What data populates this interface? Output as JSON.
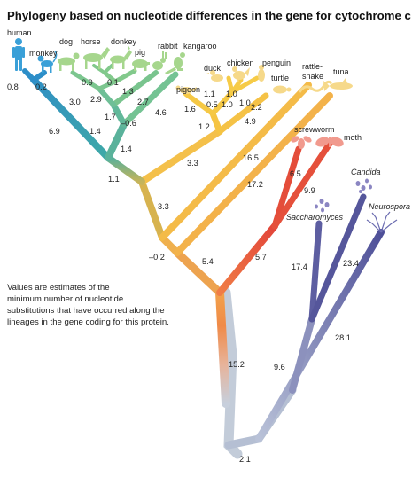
{
  "title": "Phylogeny based on nucleotide differences in the gene for cytochrome c",
  "note": {
    "lines": [
      "Values are estimates of the",
      "minimum number of nucleotide",
      "substitutions that have occurred along the",
      "lineages in the gene coding for this protein."
    ]
  },
  "species": {
    "human": "human",
    "monkey": "monkey",
    "dog": "dog",
    "horse": "horse",
    "donkey": "donkey",
    "pig": "pig",
    "rabbit": "rabbit",
    "kangaroo": "kangaroo",
    "pigeon": "pigeon",
    "duck": "duck",
    "chicken": "chicken",
    "penguin": "penguin",
    "turtle": "turtle",
    "rattlesnake_1": "rattle-",
    "rattlesnake_2": "snake",
    "tuna": "tuna",
    "screwworm": "screwworm",
    "moth": "moth",
    "candida": "Candida",
    "saccharomyces": "Saccharomyces",
    "neurospora": "Neurospora"
  },
  "branch_values": {
    "human": "0.8",
    "monkey": "0.2",
    "dog": "3.0",
    "horse": "0.9",
    "donkey": "0.1",
    "horse_donkey": "2.9",
    "pig": "1.3",
    "rabbit": "2.7",
    "kangaroo": "4.6",
    "n_1_7": "1.7",
    "n_neg_0_6": "–0.6",
    "n_1_4_a": "1.4",
    "n_1_4_b": "1.4",
    "primates": "6.9",
    "mammals_base": "1.1",
    "pigeon": "1.6",
    "duck": "1.1",
    "chicken": "1.0",
    "n_0_5": "0.5",
    "n_1_0": "1.0",
    "penguin": "1.0",
    "turtle": "2.2",
    "birds": "1.2",
    "reptile": "4.9",
    "amniote": "3.3",
    "rattlesnake": "16.5",
    "tuna": "17.2",
    "n_3_3": "3.3",
    "n_neg_0_2": "–0.2",
    "vertebrates": "5.4",
    "screwworm": "6.5",
    "moth": "9.9",
    "insects": "5.7",
    "candida": "23.4",
    "saccharomyces": "17.4",
    "neurospora": "28.1",
    "fungi_neuro": "9.6",
    "animals": "15.2",
    "root": "2.1"
  },
  "colors": {
    "teal": "#3a9db5",
    "green": "#6cc08f",
    "orange": "#f2a44a",
    "yellow": "#f5c441",
    "red": "#e8603c",
    "purple": "#5a5a9e",
    "gray": "#b7c3d4"
  }
}
